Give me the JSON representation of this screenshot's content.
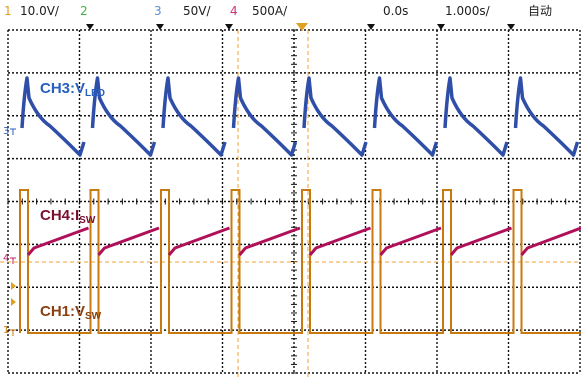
{
  "header": {
    "ch1": {
      "num": "1",
      "scale": "10.0V/",
      "color": "#e0a020"
    },
    "ch2": {
      "num": "2",
      "color": "#40b040"
    },
    "ch3": {
      "num": "3",
      "scale": "50V/",
      "color": "#5a8fd0"
    },
    "ch4": {
      "num": "4",
      "scale": "500A/",
      "color": "#d0307a"
    },
    "timebase": {
      "delay": "0.0s",
      "time_per_div": "1.000s/"
    },
    "trigger_mode": "自动"
  },
  "traces": {
    "ch3": {
      "label": "CH3:V",
      "subscript": "LED",
      "color": "#2e4ea8"
    },
    "ch4": {
      "label": "CH4:I",
      "subscript": "SW",
      "color": "#b0105a"
    },
    "ch1": {
      "label": "CH1:V",
      "subscript": "SW",
      "color": "#c87a10"
    }
  },
  "markers": {
    "ch3": "3",
    "ch4": "4",
    "ch1": "1"
  },
  "waveform": {
    "pulse_count": 8
  },
  "colors": {
    "grid": "#111111",
    "trigger_marker": "#e0a020",
    "cursor": "#f0a030",
    "label_ch3": "#2860c0",
    "label_ch4": "#7a1030",
    "label_ch1": "#8a4010"
  }
}
